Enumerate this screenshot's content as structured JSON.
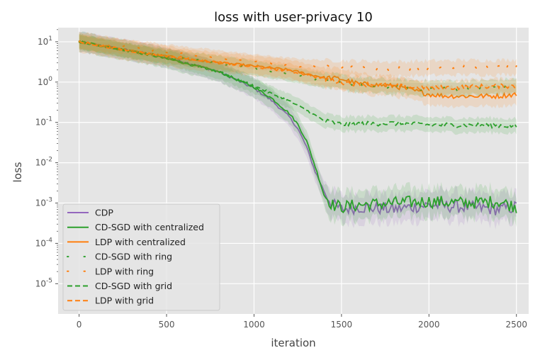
{
  "chart_data": {
    "type": "line",
    "title": "loss with user-privacy  10",
    "xlabel": "iteration",
    "ylabel": "loss",
    "xlim": [
      -120,
      2570
    ],
    "ylim_log10": [
      -5.75,
      1.35
    ],
    "yscale": "log",
    "grid": true,
    "legend_position": "lower-left",
    "x_ticks": [
      0,
      500,
      1000,
      1500,
      2000,
      2500
    ],
    "x_tick_labels": [
      "0",
      "500",
      "1000",
      "1500",
      "2000",
      "2500"
    ],
    "y_ticks": [
      10,
      1,
      0.1,
      0.01,
      0.001,
      0.0001,
      1e-05
    ],
    "y_tick_labels": [
      "10^1",
      "10^0",
      "10^-1",
      "10^-2",
      "10^-3",
      "10^-4",
      "10^-5"
    ],
    "series": [
      {
        "name": "CDP",
        "color": "#9467bd",
        "style": "solid",
        "x": [
          0,
          200,
          400,
          600,
          800,
          1000,
          1100,
          1200,
          1250,
          1300,
          1350,
          1400,
          1450,
          1500,
          1600,
          1800,
          2000,
          2200,
          2400,
          2500
        ],
        "y": [
          10,
          7.0,
          5.0,
          3.2,
          1.8,
          0.7,
          0.35,
          0.14,
          0.07,
          0.025,
          0.006,
          0.002,
          0.0009,
          0.0007,
          0.0008,
          0.0007,
          0.0009,
          0.0008,
          0.0007,
          0.0008
        ]
      },
      {
        "name": "CD-SGD with centralized",
        "color": "#2ca02c",
        "style": "solid",
        "x": [
          0,
          200,
          400,
          600,
          800,
          1000,
          1100,
          1200,
          1250,
          1300,
          1350,
          1400,
          1450,
          1500,
          1600,
          1800,
          2000,
          2200,
          2400,
          2500
        ],
        "y": [
          10,
          7.0,
          4.8,
          3.0,
          1.8,
          0.75,
          0.4,
          0.17,
          0.09,
          0.035,
          0.008,
          0.0016,
          0.0009,
          0.0008,
          0.0009,
          0.001,
          0.0011,
          0.001,
          0.0011,
          0.0008
        ]
      },
      {
        "name": "LDP with centralized",
        "color": "#ff7f0e",
        "style": "solid",
        "x": [
          0,
          200,
          400,
          600,
          800,
          1000,
          1200,
          1400,
          1500,
          1600,
          1800,
          2000,
          2100,
          2200,
          2400,
          2500
        ],
        "y": [
          10,
          7.0,
          5.0,
          3.8,
          3.0,
          2.5,
          2.0,
          1.3,
          1.2,
          0.9,
          0.8,
          0.5,
          0.45,
          0.45,
          0.45,
          0.5
        ]
      },
      {
        "name": "CD-SGD with ring",
        "color": "#2ca02c",
        "style": "dotted",
        "x": [
          0,
          200,
          400,
          600,
          800,
          1000,
          1200,
          1400,
          1600,
          1800,
          2000,
          2200,
          2400,
          2500
        ],
        "y": [
          10,
          7.0,
          5.0,
          3.8,
          3.0,
          2.2,
          1.6,
          1.1,
          0.85,
          0.75,
          0.7,
          0.7,
          0.75,
          0.8
        ]
      },
      {
        "name": "LDP with ring",
        "color": "#ff7f0e",
        "style": "dotted",
        "x": [
          0,
          200,
          400,
          600,
          800,
          1000,
          1200,
          1400,
          1600,
          1800,
          2000,
          2200,
          2400,
          2500
        ],
        "y": [
          10,
          8.0,
          6.5,
          5.0,
          4.0,
          3.2,
          2.6,
          2.3,
          2.2,
          2.1,
          2.2,
          2.3,
          2.3,
          2.4
        ]
      },
      {
        "name": "CD-SGD with grid",
        "color": "#2ca02c",
        "style": "dashed",
        "x": [
          0,
          200,
          400,
          600,
          800,
          1000,
          1100,
          1200,
          1300,
          1400,
          1500,
          1600,
          1800,
          2000,
          2200,
          2400,
          2500
        ],
        "y": [
          10,
          7.0,
          4.8,
          3.1,
          1.8,
          0.8,
          0.52,
          0.34,
          0.2,
          0.11,
          0.09,
          0.092,
          0.095,
          0.088,
          0.085,
          0.085,
          0.08
        ]
      },
      {
        "name": "LDP with grid",
        "color": "#ff7f0e",
        "style": "dashed",
        "x": [
          0,
          200,
          400,
          600,
          800,
          1000,
          1200,
          1400,
          1500,
          1600,
          1800,
          2000,
          2200,
          2400,
          2500
        ],
        "y": [
          10,
          7.0,
          5.0,
          4.0,
          3.0,
          2.4,
          1.9,
          1.2,
          1.0,
          0.9,
          0.8,
          0.7,
          0.75,
          0.8,
          0.8
        ]
      }
    ]
  }
}
